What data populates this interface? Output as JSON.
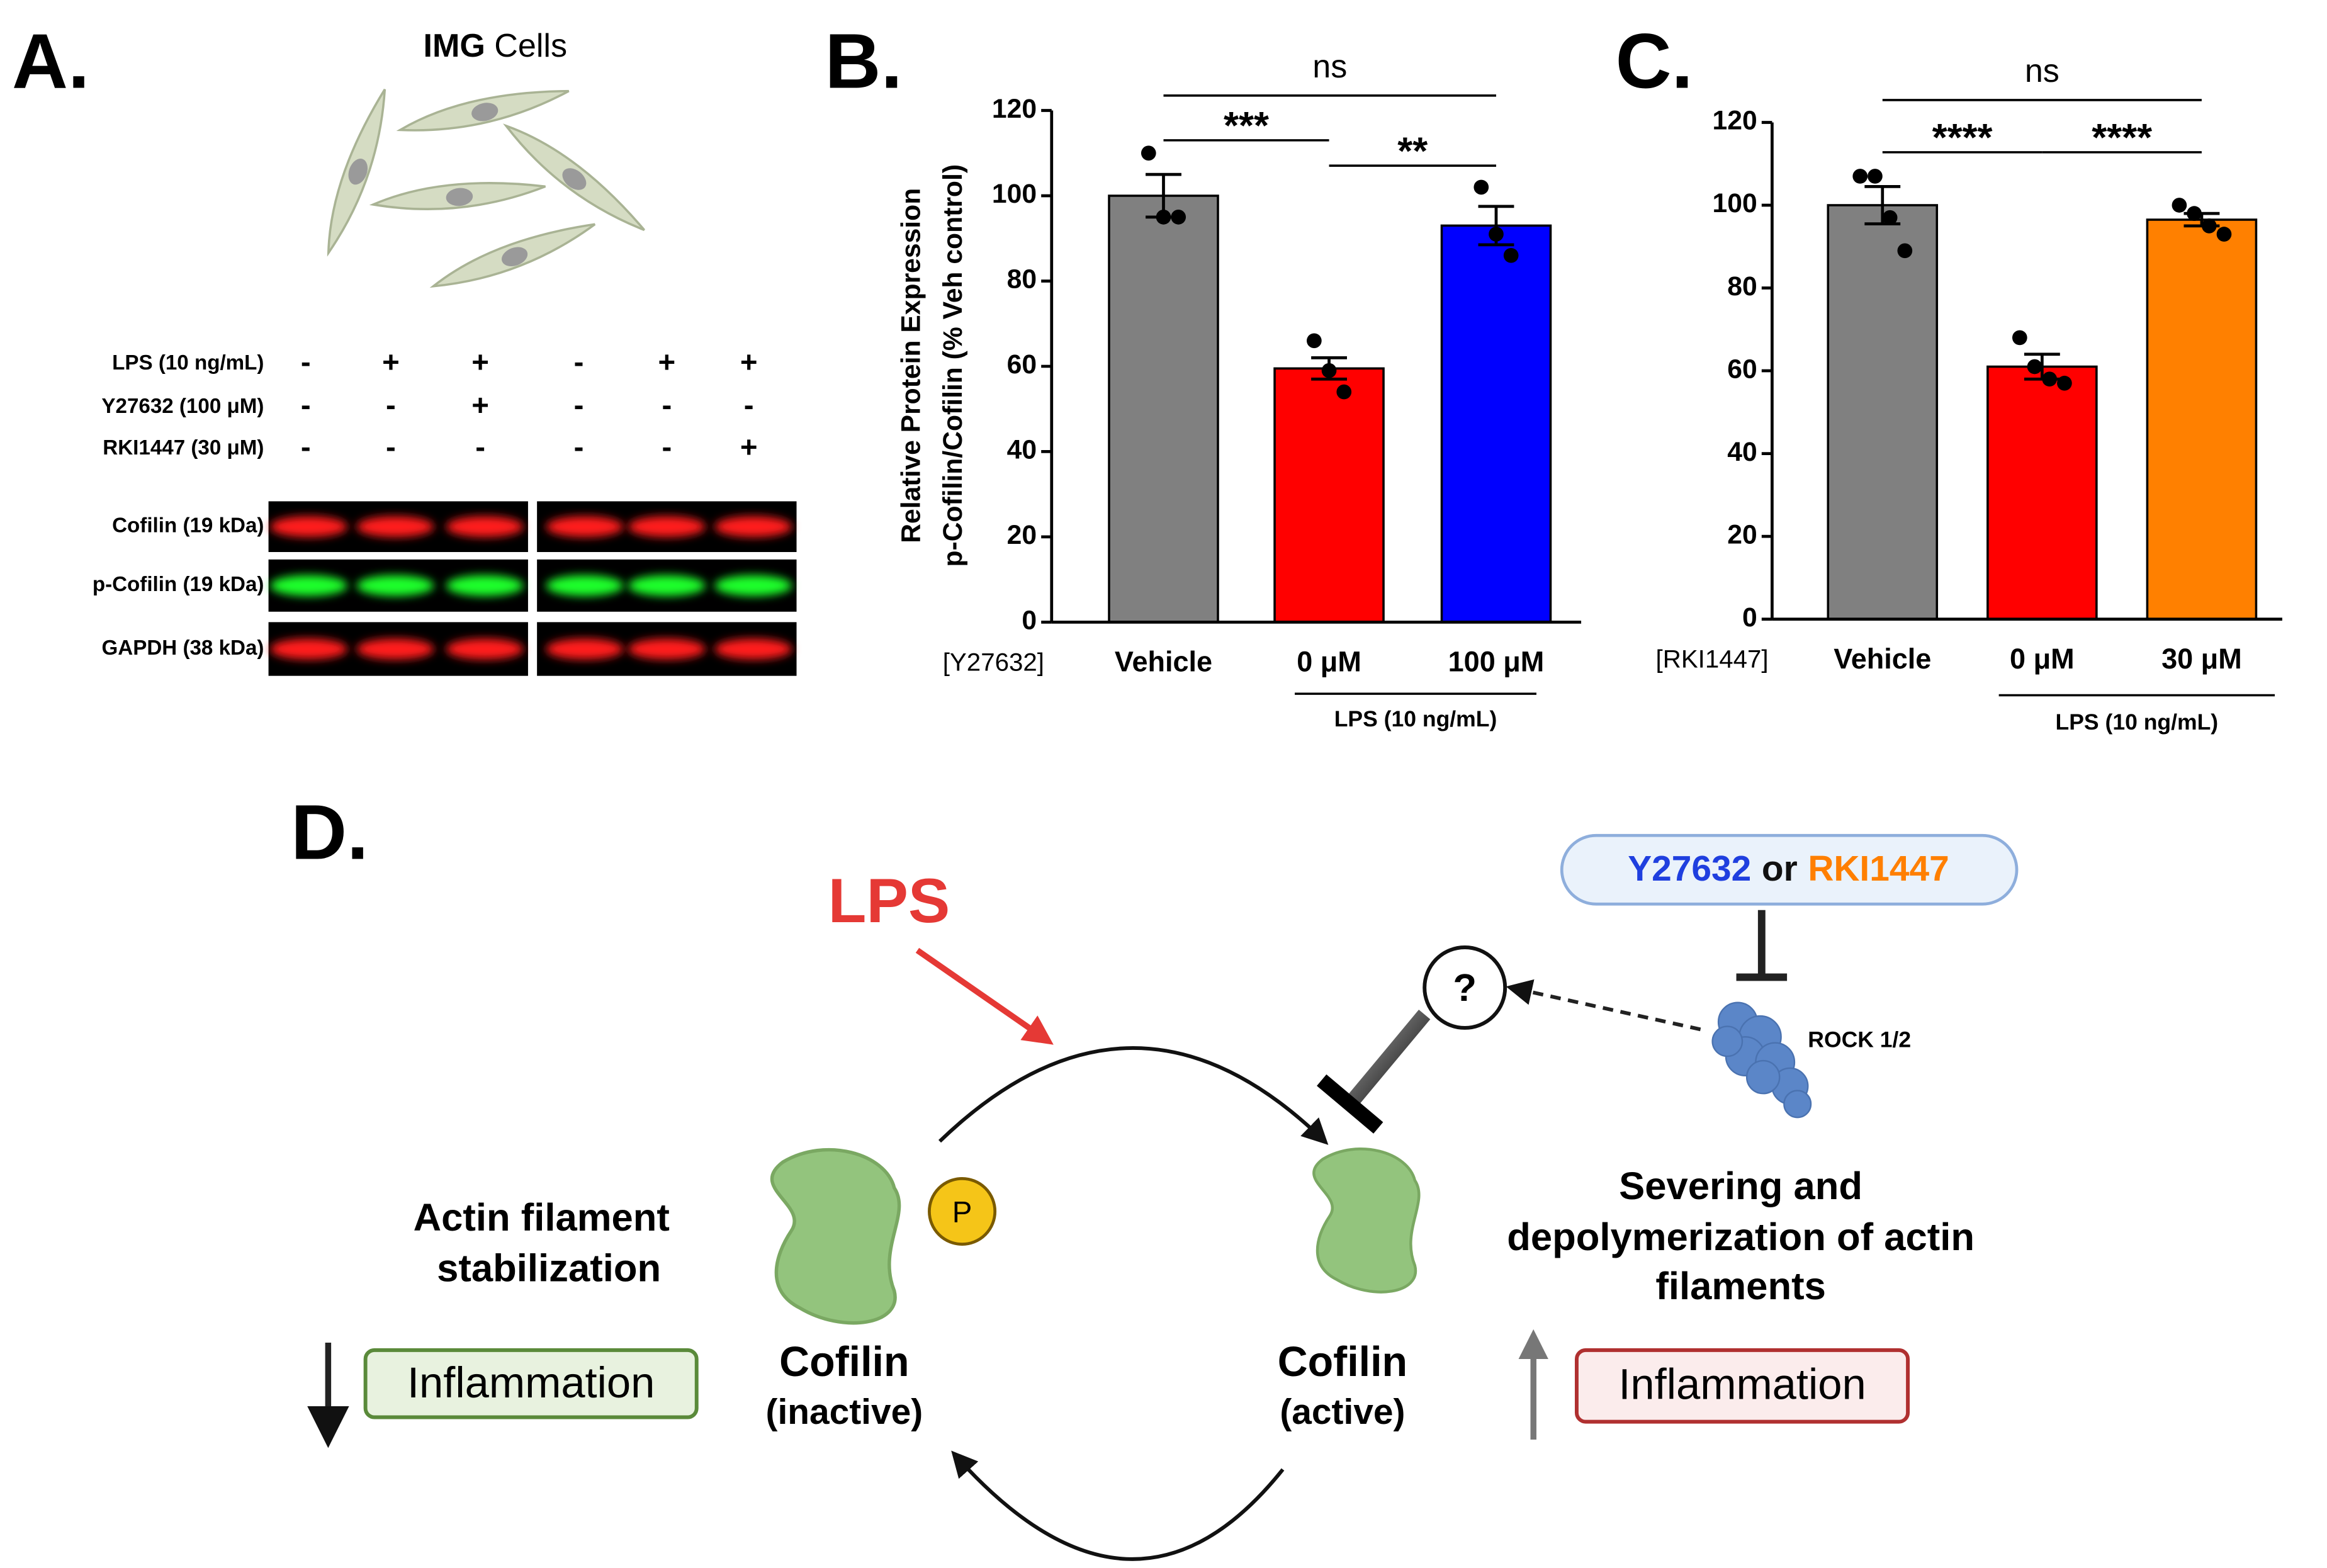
{
  "panel_a": {
    "label": "A.",
    "title": [
      "IMG",
      "Cells"
    ],
    "treatments": [
      {
        "name": "LPS (10 ng/mL)",
        "lanes": [
          "-",
          "+",
          "+",
          "-",
          "+",
          "+"
        ]
      },
      {
        "name": "Y27632 (100 μM)",
        "lanes": [
          "-",
          "-",
          "+",
          "-",
          "-",
          "-"
        ]
      },
      {
        "name": "RKI1447 (30 μM)",
        "lanes": [
          "-",
          "-",
          "-",
          "-",
          "-",
          "+"
        ]
      }
    ],
    "blots": [
      "Cofilin (19 kDa)",
      "p-Cofilin (19 kDa)",
      "GAPDH (38 kDa)"
    ]
  },
  "chart_data": [
    {
      "type": "bar",
      "panel_label": "B.",
      "ylabel": [
        "Relative Protein Expression",
        "p-Cofilin/Cofilin (% Veh control)"
      ],
      "xlabel": "[Y27632]",
      "categories": [
        "Vehicle",
        "0 μM",
        "100 μM"
      ],
      "values": [
        100,
        59.5,
        93
      ],
      "errors": [
        5,
        2.5,
        4.5
      ],
      "points": [
        [
          110,
          95,
          95
        ],
        [
          66,
          59,
          54
        ],
        [
          102,
          91,
          86
        ]
      ],
      "colors": [
        "#808080",
        "#ff0000",
        "#0000ff"
      ],
      "ylim": [
        0,
        120
      ],
      "yticks": [
        0,
        20,
        40,
        60,
        80,
        100,
        120
      ],
      "group_label": "LPS (10 ng/mL)",
      "significance": [
        "ns",
        "***",
        "**"
      ]
    },
    {
      "type": "bar",
      "panel_label": "C.",
      "xlabel": "[RKI1447]",
      "categories": [
        "Vehicle",
        "0 μM",
        "30 μM"
      ],
      "values": [
        100,
        61,
        96.5
      ],
      "errors": [
        4.5,
        3,
        1.5
      ],
      "points": [
        [
          107,
          107,
          97,
          89
        ],
        [
          68,
          61,
          58,
          57
        ],
        [
          100,
          98,
          95,
          93
        ]
      ],
      "colors": [
        "#808080",
        "#ff0000",
        "#ff8000"
      ],
      "ylim": [
        0,
        120
      ],
      "yticks": [
        0,
        20,
        40,
        60,
        80,
        100,
        120
      ],
      "group_label": "LPS (10 ng/mL)",
      "significance": [
        "ns",
        "****",
        "****"
      ]
    }
  ],
  "panel_d": {
    "label": "D.",
    "stimulus": "LPS",
    "inhibitors": [
      "Y27632",
      "or",
      "RKI1447"
    ],
    "unknown": "?",
    "kinase": "ROCK 1/2",
    "phospho": "P",
    "inactive": [
      "Cofilin",
      "(inactive)"
    ],
    "active": [
      "Cofilin",
      "(active)"
    ],
    "left_effect": [
      "Actin filament",
      "stabilization"
    ],
    "right_effect": [
      "Severing and",
      "depolymerization of actin",
      "filaments"
    ],
    "left_outcome": "Inflammation",
    "right_outcome": "Inflammation"
  }
}
